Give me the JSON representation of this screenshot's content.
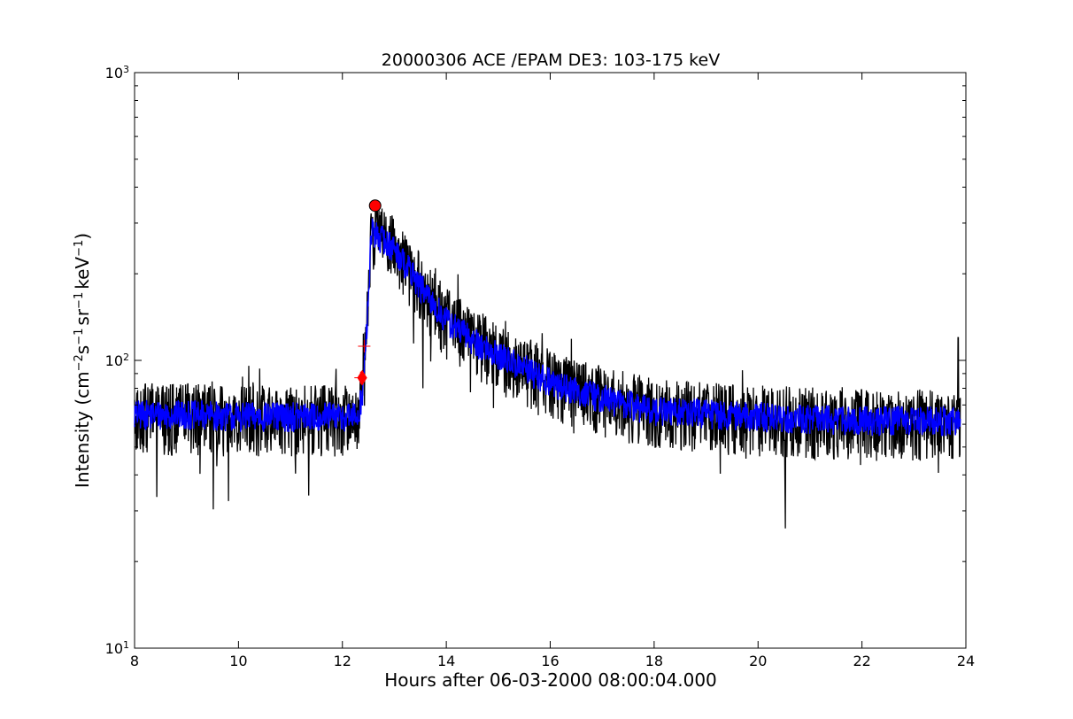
{
  "chart_data": {
    "type": "line",
    "title": "20000306 ACE /EPAM DE3: 103-175 keV",
    "xlabel": "Hours after 06-03-2000 08:00:04.000",
    "ylabel": {
      "prefix": "Intensity (cm",
      "sup1": "−2",
      "mid1": "s",
      "sup2": "−1",
      "mid2": "sr",
      "sup3": "−1",
      "mid3": "keV",
      "sup4": "−1",
      "suffix": ")"
    },
    "xlim": [
      8,
      24
    ],
    "ylim": [
      10,
      1000
    ],
    "yscale": "log",
    "grid": false,
    "legend": "none",
    "x_ticks": [
      "8",
      "10",
      "12",
      "14",
      "16",
      "18",
      "20",
      "22",
      "24"
    ],
    "y_ticks": [
      {
        "base": "10",
        "exp": "1"
      },
      {
        "base": "10",
        "exp": "2"
      },
      {
        "base": "10",
        "exp": "3"
      }
    ],
    "series": [
      {
        "color": "#000000",
        "style": "raw-noisy",
        "profile": [
          [
            8.0,
            65
          ],
          [
            9.0,
            65
          ],
          [
            10.0,
            64
          ],
          [
            11.0,
            64
          ],
          [
            12.0,
            64
          ],
          [
            12.3,
            64
          ],
          [
            12.4,
            80
          ],
          [
            12.5,
            160
          ],
          [
            12.55,
            280
          ],
          [
            12.7,
            280
          ],
          [
            13.0,
            250
          ],
          [
            13.3,
            210
          ],
          [
            13.7,
            165
          ],
          [
            14.0,
            140
          ],
          [
            14.5,
            120
          ],
          [
            15.0,
            105
          ],
          [
            15.5,
            95
          ],
          [
            16.0,
            85
          ],
          [
            17.0,
            75
          ],
          [
            18.0,
            68
          ],
          [
            20.0,
            64
          ],
          [
            22.0,
            62
          ],
          [
            23.9,
            62
          ]
        ],
        "noise_frac": 0.28,
        "spike_x": [
          23.85
        ],
        "spike_y": [
          120
        ]
      },
      {
        "color": "#0000ff",
        "style": "smoothed",
        "profile": [
          [
            8.0,
            65
          ],
          [
            9.0,
            65
          ],
          [
            10.0,
            64
          ],
          [
            11.0,
            64
          ],
          [
            12.0,
            64
          ],
          [
            12.3,
            64
          ],
          [
            12.4,
            80
          ],
          [
            12.5,
            160
          ],
          [
            12.55,
            280
          ],
          [
            12.7,
            270
          ],
          [
            13.0,
            245
          ],
          [
            13.3,
            205
          ],
          [
            13.7,
            160
          ],
          [
            14.0,
            138
          ],
          [
            14.5,
            118
          ],
          [
            15.0,
            104
          ],
          [
            15.5,
            94
          ],
          [
            16.0,
            84
          ],
          [
            17.0,
            74
          ],
          [
            18.0,
            67
          ],
          [
            20.0,
            64
          ],
          [
            22.0,
            62
          ],
          [
            23.9,
            62
          ]
        ],
        "noise_frac": 0.12
      }
    ],
    "markers": [
      {
        "type": "circle",
        "color": "#ff0000",
        "x": 12.63,
        "y": 345
      },
      {
        "type": "diamond",
        "color": "#ff0000",
        "x": 12.38,
        "y": 87
      },
      {
        "type": "plus",
        "color": "#ff0000",
        "x": 12.42,
        "y": 112
      },
      {
        "type": "plus",
        "color": "#ff0000",
        "x": 12.35,
        "y": 87
      }
    ]
  }
}
